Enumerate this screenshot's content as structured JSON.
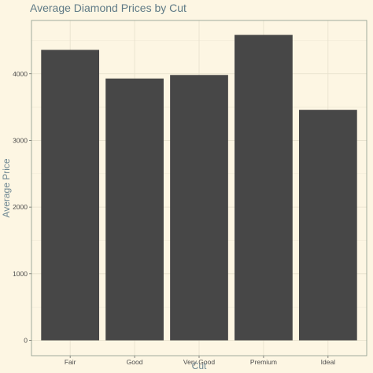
{
  "chart_data": {
    "type": "bar",
    "title": "Average Diamond Prices by Cut",
    "xlabel": "Cut",
    "ylabel": "Average Price",
    "categories": [
      "Fair",
      "Good",
      "Very Good",
      "Premium",
      "Ideal"
    ],
    "values": [
      4359,
      3929,
      3982,
      4584,
      3458
    ],
    "ylim": [
      -230,
      4800
    ],
    "yticks": [
      0,
      1000,
      2000,
      3000,
      4000
    ],
    "grid": true,
    "bar_color": "#474747",
    "background_color": "#fdf6e3"
  }
}
